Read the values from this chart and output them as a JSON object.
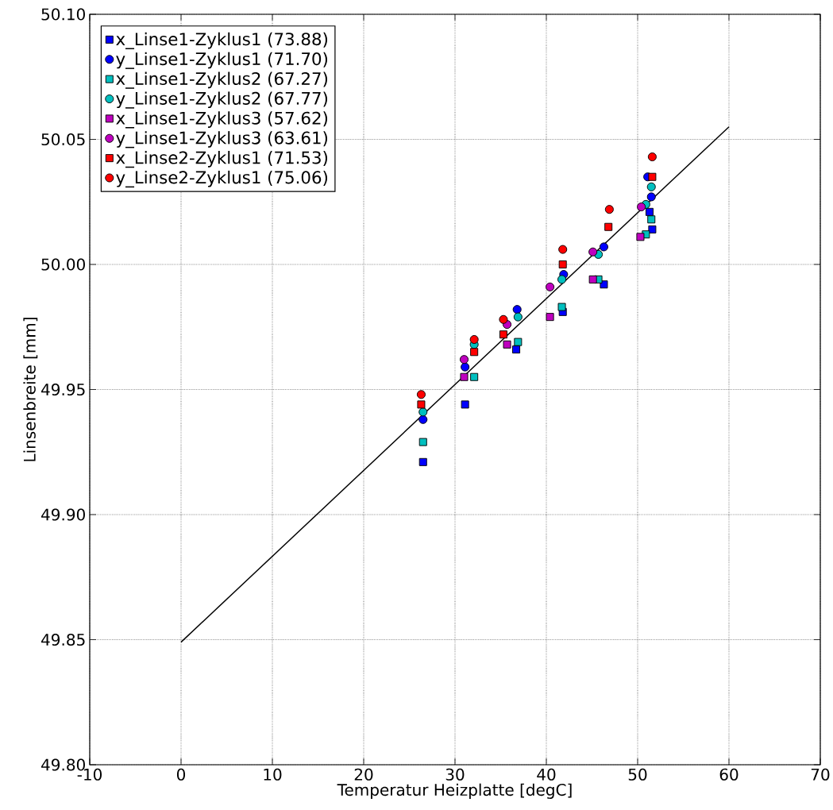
{
  "chart_data": {
    "type": "scatter",
    "xlabel": "Temperatur Heizplatte [degC]",
    "ylabel": "Linsenbreite [mm]",
    "xlim": [
      -10,
      70
    ],
    "xticks": [
      -10,
      0,
      10,
      20,
      30,
      40,
      50,
      60,
      70
    ],
    "ylim": [
      49.8,
      50.1
    ],
    "yticks": [
      {
        "value": 49.8,
        "label": "49.80"
      },
      {
        "value": 49.85,
        "label": "49.85"
      },
      {
        "value": 49.9,
        "label": "49.90"
      },
      {
        "value": 49.95,
        "label": "49.95"
      },
      {
        "value": 50.0,
        "label": "50.00"
      },
      {
        "value": 50.05,
        "label": "50.05"
      },
      {
        "value": 50.1,
        "label": "50.10"
      }
    ],
    "grid": true,
    "legend": "top left",
    "series": [
      {
        "name": "x_Linse1-Zyklus1 (73.88)",
        "color": "#0000ff",
        "marker": "square",
        "x": [
          26.5,
          31.1,
          36.7,
          41.8,
          46.3,
          51.3,
          51.6
        ],
        "values": [
          49.921,
          49.944,
          49.966,
          49.981,
          49.992,
          50.021,
          50.014
        ]
      },
      {
        "name": "y_Linse1-Zyklus1 (71.70)",
        "color": "#0000ff",
        "marker": "circle",
        "x": [
          26.5,
          31.1,
          36.8,
          41.9,
          46.3,
          51.5,
          51.1
        ],
        "values": [
          49.938,
          49.959,
          49.982,
          49.996,
          50.007,
          50.027,
          50.035
        ]
      },
      {
        "name": "x_Linse1-Zyklus2 (67.27)",
        "color": "#00bfbf",
        "marker": "square",
        "x": [
          26.5,
          32.1,
          36.9,
          41.7,
          45.7,
          51.5,
          50.9
        ],
        "values": [
          49.929,
          49.955,
          49.969,
          49.983,
          49.994,
          50.018,
          50.012
        ]
      },
      {
        "name": "y_Linse1-Zyklus2 (67.77)",
        "color": "#00bfbf",
        "marker": "circle",
        "x": [
          26.5,
          32.1,
          36.9,
          41.7,
          45.7,
          51.5,
          50.9
        ],
        "values": [
          49.941,
          49.968,
          49.979,
          49.994,
          50.004,
          50.031,
          50.024
        ]
      },
      {
        "name": "x_Linse1-Zyklus3 (57.62)",
        "color": "#bf00bf",
        "marker": "square",
        "x": [
          31.0,
          35.7,
          40.4,
          45.1,
          50.3
        ],
        "values": [
          49.955,
          49.968,
          49.979,
          49.994,
          50.011
        ]
      },
      {
        "name": "y_Linse1-Zyklus3 (63.61)",
        "color": "#bf00bf",
        "marker": "circle",
        "x": [
          31.0,
          35.7,
          40.4,
          45.1,
          50.4
        ],
        "values": [
          49.962,
          49.976,
          49.991,
          50.005,
          50.023
        ]
      },
      {
        "name": "x_Linse2-Zyklus1 (71.53)",
        "color": "#ff0000",
        "marker": "square",
        "x": [
          26.3,
          32.1,
          35.3,
          41.8,
          46.8,
          51.6
        ],
        "values": [
          49.944,
          49.965,
          49.972,
          50.0,
          50.015,
          50.035
        ]
      },
      {
        "name": "y_Linse2-Zyklus1 (75.06)",
        "color": "#ff0000",
        "marker": "circle",
        "x": [
          26.3,
          32.1,
          35.3,
          41.8,
          46.9,
          51.6
        ],
        "values": [
          49.948,
          49.97,
          49.978,
          50.006,
          50.022,
          50.043
        ]
      },
      {
        "type": "line",
        "color": "#000000",
        "marker": "none",
        "x": [
          0,
          60
        ],
        "values": [
          49.849,
          50.055
        ]
      }
    ]
  }
}
